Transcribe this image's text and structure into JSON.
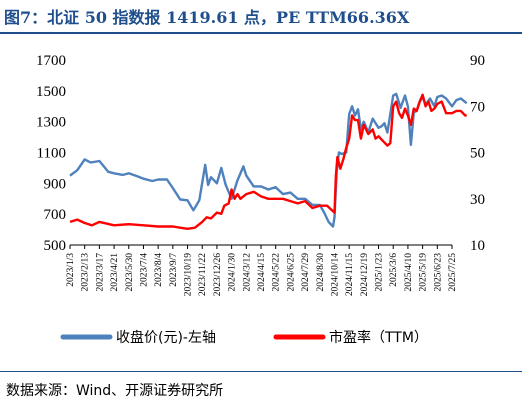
{
  "title": "图7：北证 50 指数报 1419.61 点，PE TTM66.36X",
  "source": "数据来源：Wind、开源证券研究所",
  "chart_data": {
    "type": "line",
    "x_labels": [
      "2023/1/3",
      "2023/2/13",
      "2023/3/17",
      "2023/4/21",
      "2023/5/30",
      "2023/7/4",
      "2023/8/4",
      "2023/9/7",
      "2023/10/19",
      "2023/11/22",
      "2023/12/26",
      "2024/1/30",
      "2024/3/12",
      "2024/4/15",
      "2024/5/22",
      "2024/6/25",
      "2024/7/29",
      "2024/8/30",
      "2024/10/14",
      "2024/11/15",
      "2024/12/19",
      "2025/1/23",
      "2025/3/6",
      "2025/4/10",
      "2025/5/19",
      "2025/6/23",
      "2025/7/25"
    ],
    "y_left": {
      "min": 500,
      "max": 1700,
      "ticks": [
        500,
        700,
        900,
        1100,
        1300,
        1500,
        1700
      ]
    },
    "y_right": {
      "min": 10,
      "max": 90,
      "ticks": [
        10,
        30,
        50,
        70,
        90
      ]
    },
    "series": [
      {
        "name": "收盘价(元)-左轴",
        "axis": "left",
        "color": "#4f81bd",
        "points": [
          [
            0,
            950
          ],
          [
            0.5,
            985
          ],
          [
            1,
            1055
          ],
          [
            1.4,
            1035
          ],
          [
            2,
            1045
          ],
          [
            2.6,
            975
          ],
          [
            3,
            965
          ],
          [
            3.6,
            955
          ],
          [
            4,
            965
          ],
          [
            4.6,
            945
          ],
          [
            5,
            930
          ],
          [
            5.6,
            915
          ],
          [
            6,
            925
          ],
          [
            6.6,
            925
          ],
          [
            7,
            870
          ],
          [
            7.5,
            795
          ],
          [
            8,
            790
          ],
          [
            8.4,
            725
          ],
          [
            8.8,
            790
          ],
          [
            9.2,
            1020
          ],
          [
            9.4,
            890
          ],
          [
            9.6,
            940
          ],
          [
            10,
            900
          ],
          [
            10.3,
            1000
          ],
          [
            10.6,
            890
          ],
          [
            11,
            800
          ],
          [
            11.4,
            920
          ],
          [
            11.8,
            1010
          ],
          [
            12,
            950
          ],
          [
            12.5,
            880
          ],
          [
            13,
            880
          ],
          [
            13.5,
            860
          ],
          [
            14,
            875
          ],
          [
            14.5,
            830
          ],
          [
            15,
            840
          ],
          [
            15.5,
            800
          ],
          [
            16,
            800
          ],
          [
            16.5,
            760
          ],
          [
            17,
            760
          ],
          [
            17.3,
            710
          ],
          [
            17.6,
            650
          ],
          [
            17.9,
            620
          ],
          [
            18,
            680
          ],
          [
            18.15,
            980
          ],
          [
            18.3,
            1100
          ],
          [
            18.5,
            1090
          ],
          [
            18.8,
            1100
          ],
          [
            19,
            1350
          ],
          [
            19.2,
            1400
          ],
          [
            19.4,
            1340
          ],
          [
            19.6,
            1380
          ],
          [
            19.8,
            1250
          ],
          [
            20,
            1300
          ],
          [
            20.3,
            1230
          ],
          [
            20.6,
            1320
          ],
          [
            21,
            1260
          ],
          [
            21.2,
            1270
          ],
          [
            21.4,
            1290
          ],
          [
            21.6,
            1230
          ],
          [
            22,
            1470
          ],
          [
            22.2,
            1480
          ],
          [
            22.5,
            1390
          ],
          [
            22.8,
            1470
          ],
          [
            23,
            1400
          ],
          [
            23.2,
            1150
          ],
          [
            23.4,
            1360
          ],
          [
            23.6,
            1370
          ],
          [
            23.8,
            1430
          ],
          [
            24,
            1460
          ],
          [
            24.2,
            1410
          ],
          [
            24.5,
            1450
          ],
          [
            24.8,
            1400
          ],
          [
            25,
            1460
          ],
          [
            25.3,
            1470
          ],
          [
            25.6,
            1450
          ],
          [
            26,
            1400
          ],
          [
            26.3,
            1440
          ],
          [
            26.6,
            1450
          ],
          [
            27,
            1420
          ]
        ]
      },
      {
        "name": "市盈率（TTM）",
        "axis": "right",
        "color": "#ff0000",
        "points": [
          [
            0,
            20
          ],
          [
            0.5,
            21
          ],
          [
            1,
            19.5
          ],
          [
            1.5,
            18.5
          ],
          [
            2,
            20
          ],
          [
            3,
            18.5
          ],
          [
            4,
            19
          ],
          [
            5,
            18.5
          ],
          [
            6,
            18
          ],
          [
            7,
            18
          ],
          [
            7.5,
            17.5
          ],
          [
            8,
            17
          ],
          [
            8.5,
            17.5
          ],
          [
            9,
            20
          ],
          [
            9.3,
            22
          ],
          [
            9.6,
            21.5
          ],
          [
            10,
            24
          ],
          [
            10.3,
            23.5
          ],
          [
            10.5,
            27
          ],
          [
            10.8,
            28
          ],
          [
            11,
            34
          ],
          [
            11.2,
            30
          ],
          [
            11.4,
            32
          ],
          [
            11.6,
            30
          ],
          [
            12,
            32
          ],
          [
            12.5,
            33
          ],
          [
            13,
            31
          ],
          [
            13.5,
            30
          ],
          [
            14,
            30
          ],
          [
            14.5,
            30
          ],
          [
            15,
            29
          ],
          [
            15.5,
            28
          ],
          [
            16,
            29
          ],
          [
            16.5,
            26
          ],
          [
            17,
            27
          ],
          [
            17.5,
            27
          ],
          [
            18,
            24
          ],
          [
            18.1,
            40
          ],
          [
            18.2,
            48
          ],
          [
            18.4,
            43
          ],
          [
            18.6,
            47
          ],
          [
            18.8,
            52
          ],
          [
            19,
            56
          ],
          [
            19.2,
            66
          ],
          [
            19.4,
            64
          ],
          [
            19.6,
            64
          ],
          [
            19.8,
            56
          ],
          [
            20,
            62
          ],
          [
            20.3,
            58
          ],
          [
            20.6,
            60
          ],
          [
            20.8,
            56
          ],
          [
            21,
            57
          ],
          [
            21.3,
            55
          ],
          [
            21.6,
            53
          ],
          [
            21.8,
            54
          ],
          [
            22,
            70
          ],
          [
            22.2,
            72
          ],
          [
            22.4,
            67
          ],
          [
            22.6,
            65
          ],
          [
            22.8,
            69
          ],
          [
            23,
            66
          ],
          [
            23.2,
            62
          ],
          [
            23.4,
            69
          ],
          [
            23.6,
            68
          ],
          [
            23.8,
            72
          ],
          [
            24,
            75
          ],
          [
            24.2,
            70
          ],
          [
            24.4,
            72
          ],
          [
            24.6,
            68
          ],
          [
            24.8,
            69
          ],
          [
            25,
            71
          ],
          [
            25.3,
            72
          ],
          [
            25.6,
            67
          ],
          [
            26,
            67
          ],
          [
            26.3,
            68
          ],
          [
            26.6,
            68
          ],
          [
            26.9,
            66
          ],
          [
            27,
            66
          ]
        ]
      }
    ]
  }
}
